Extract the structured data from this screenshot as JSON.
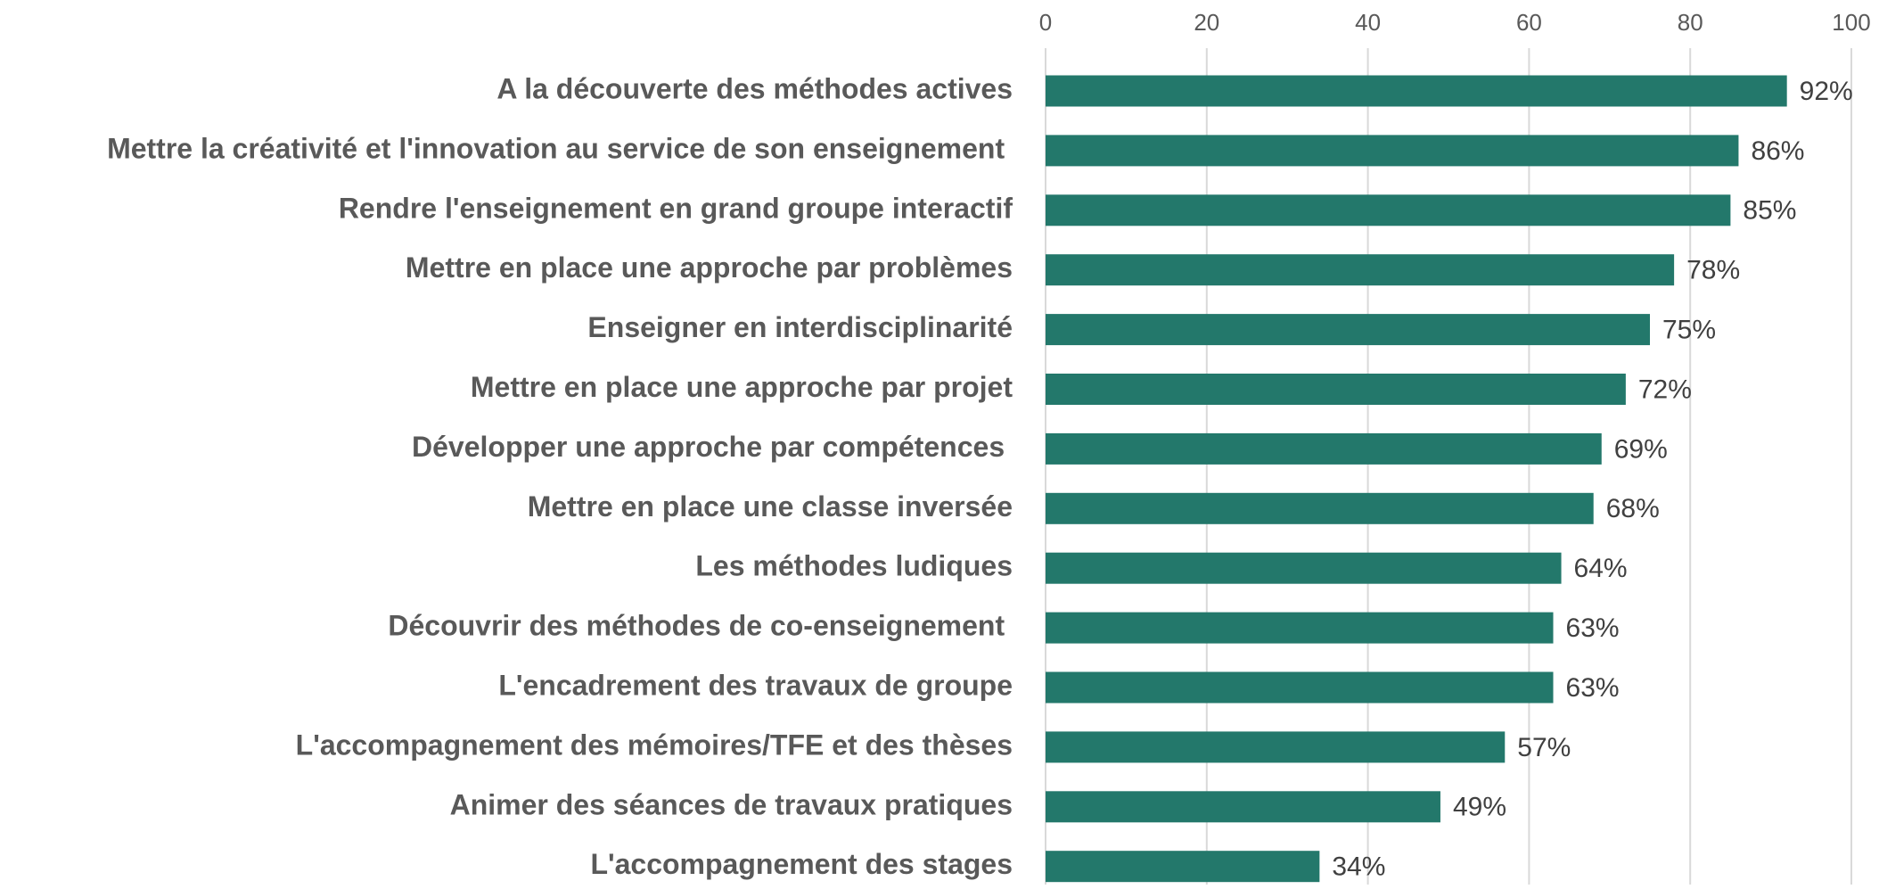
{
  "chart_data": {
    "type": "bar",
    "orientation": "horizontal",
    "categories": [
      "A la découverte des méthodes actives",
      "Mettre la créativité et l'innovation au service de son enseignement ",
      "Rendre l'enseignement en grand groupe interactif",
      "Mettre en place une approche par problèmes",
      "Enseigner en interdisciplinarité",
      "Mettre en place une approche par projet",
      "Développer une approche par compétences ",
      "Mettre en place une classe inversée",
      "Les méthodes ludiques",
      "Découvrir des méthodes de co-enseignement ",
      "L'encadrement des travaux de groupe",
      "L'accompagnement des mémoires/TFE et des thèses",
      "Animer des séances de travaux pratiques",
      "L'accompagnement des stages"
    ],
    "values": [
      92,
      86,
      85,
      78,
      75,
      72,
      69,
      68,
      64,
      63,
      63,
      57,
      49,
      34
    ],
    "value_labels": [
      "92%",
      "86%",
      "85%",
      "78%",
      "75%",
      "72%",
      "69%",
      "68%",
      "64%",
      "63%",
      "63%",
      "57%",
      "49%",
      "34%"
    ],
    "color": "#23786b",
    "xlim": [
      0,
      100
    ],
    "xticks": [
      0,
      20,
      40,
      60,
      80,
      100
    ],
    "grid": true
  }
}
